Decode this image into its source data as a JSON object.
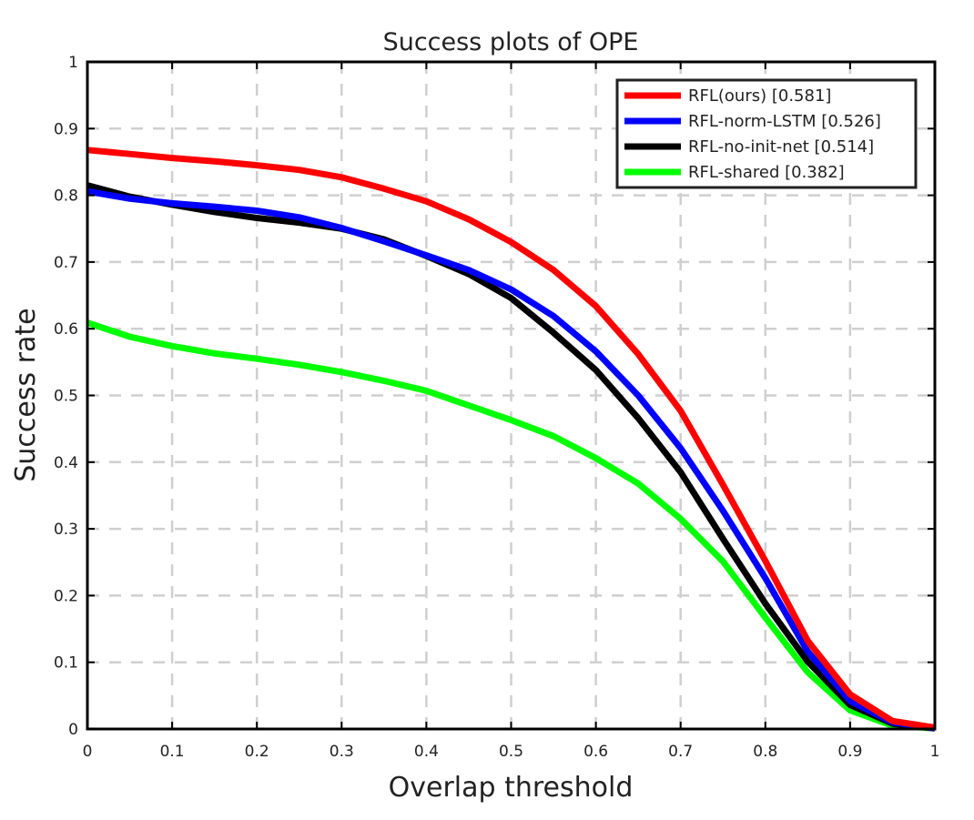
{
  "chart_data": {
    "type": "line",
    "title": "Success plots of OPE",
    "xlabel": "Overlap threshold",
    "ylabel": "Success rate",
    "xlim": [
      0,
      1
    ],
    "ylim": [
      0,
      1
    ],
    "grid": true,
    "legend_position": "top-right",
    "x_ticks": [
      "0",
      "0.1",
      "0.2",
      "0.3",
      "0.4",
      "0.5",
      "0.6",
      "0.7",
      "0.8",
      "0.9",
      "1"
    ],
    "y_ticks": [
      "0",
      "0.1",
      "0.2",
      "0.3",
      "0.4",
      "0.5",
      "0.6",
      "0.7",
      "0.8",
      "0.9",
      "1"
    ],
    "x": [
      0,
      0.05,
      0.1,
      0.15,
      0.2,
      0.25,
      0.3,
      0.35,
      0.4,
      0.45,
      0.5,
      0.55,
      0.6,
      0.65,
      0.7,
      0.75,
      0.8,
      0.85,
      0.9,
      0.95,
      1.0
    ],
    "series": [
      {
        "name": "RFL(ours) [0.581]",
        "color": "#ff0000",
        "values": [
          0.868,
          0.862,
          0.856,
          0.851,
          0.845,
          0.838,
          0.827,
          0.81,
          0.791,
          0.764,
          0.73,
          0.688,
          0.634,
          0.562,
          0.477,
          0.366,
          0.252,
          0.132,
          0.052,
          0.012,
          0.002
        ]
      },
      {
        "name": "RFL-norm-LSTM [0.526]",
        "color": "#0000ff",
        "values": [
          0.806,
          0.795,
          0.788,
          0.783,
          0.777,
          0.767,
          0.751,
          0.731,
          0.71,
          0.688,
          0.659,
          0.619,
          0.566,
          0.5,
          0.421,
          0.327,
          0.226,
          0.116,
          0.042,
          0.01,
          0.001
        ]
      },
      {
        "name": "RFL-no-init-net [0.514]",
        "color": "#000000",
        "values": [
          0.815,
          0.798,
          0.786,
          0.775,
          0.766,
          0.759,
          0.75,
          0.734,
          0.709,
          0.682,
          0.646,
          0.594,
          0.538,
          0.466,
          0.385,
          0.285,
          0.188,
          0.101,
          0.036,
          0.008,
          0.001
        ]
      },
      {
        "name": "RFL-shared [0.382]",
        "color": "#00ff00",
        "values": [
          0.609,
          0.588,
          0.574,
          0.563,
          0.555,
          0.546,
          0.535,
          0.522,
          0.507,
          0.485,
          0.463,
          0.439,
          0.406,
          0.368,
          0.315,
          0.251,
          0.167,
          0.085,
          0.028,
          0.005,
          0.001
        ]
      }
    ]
  }
}
